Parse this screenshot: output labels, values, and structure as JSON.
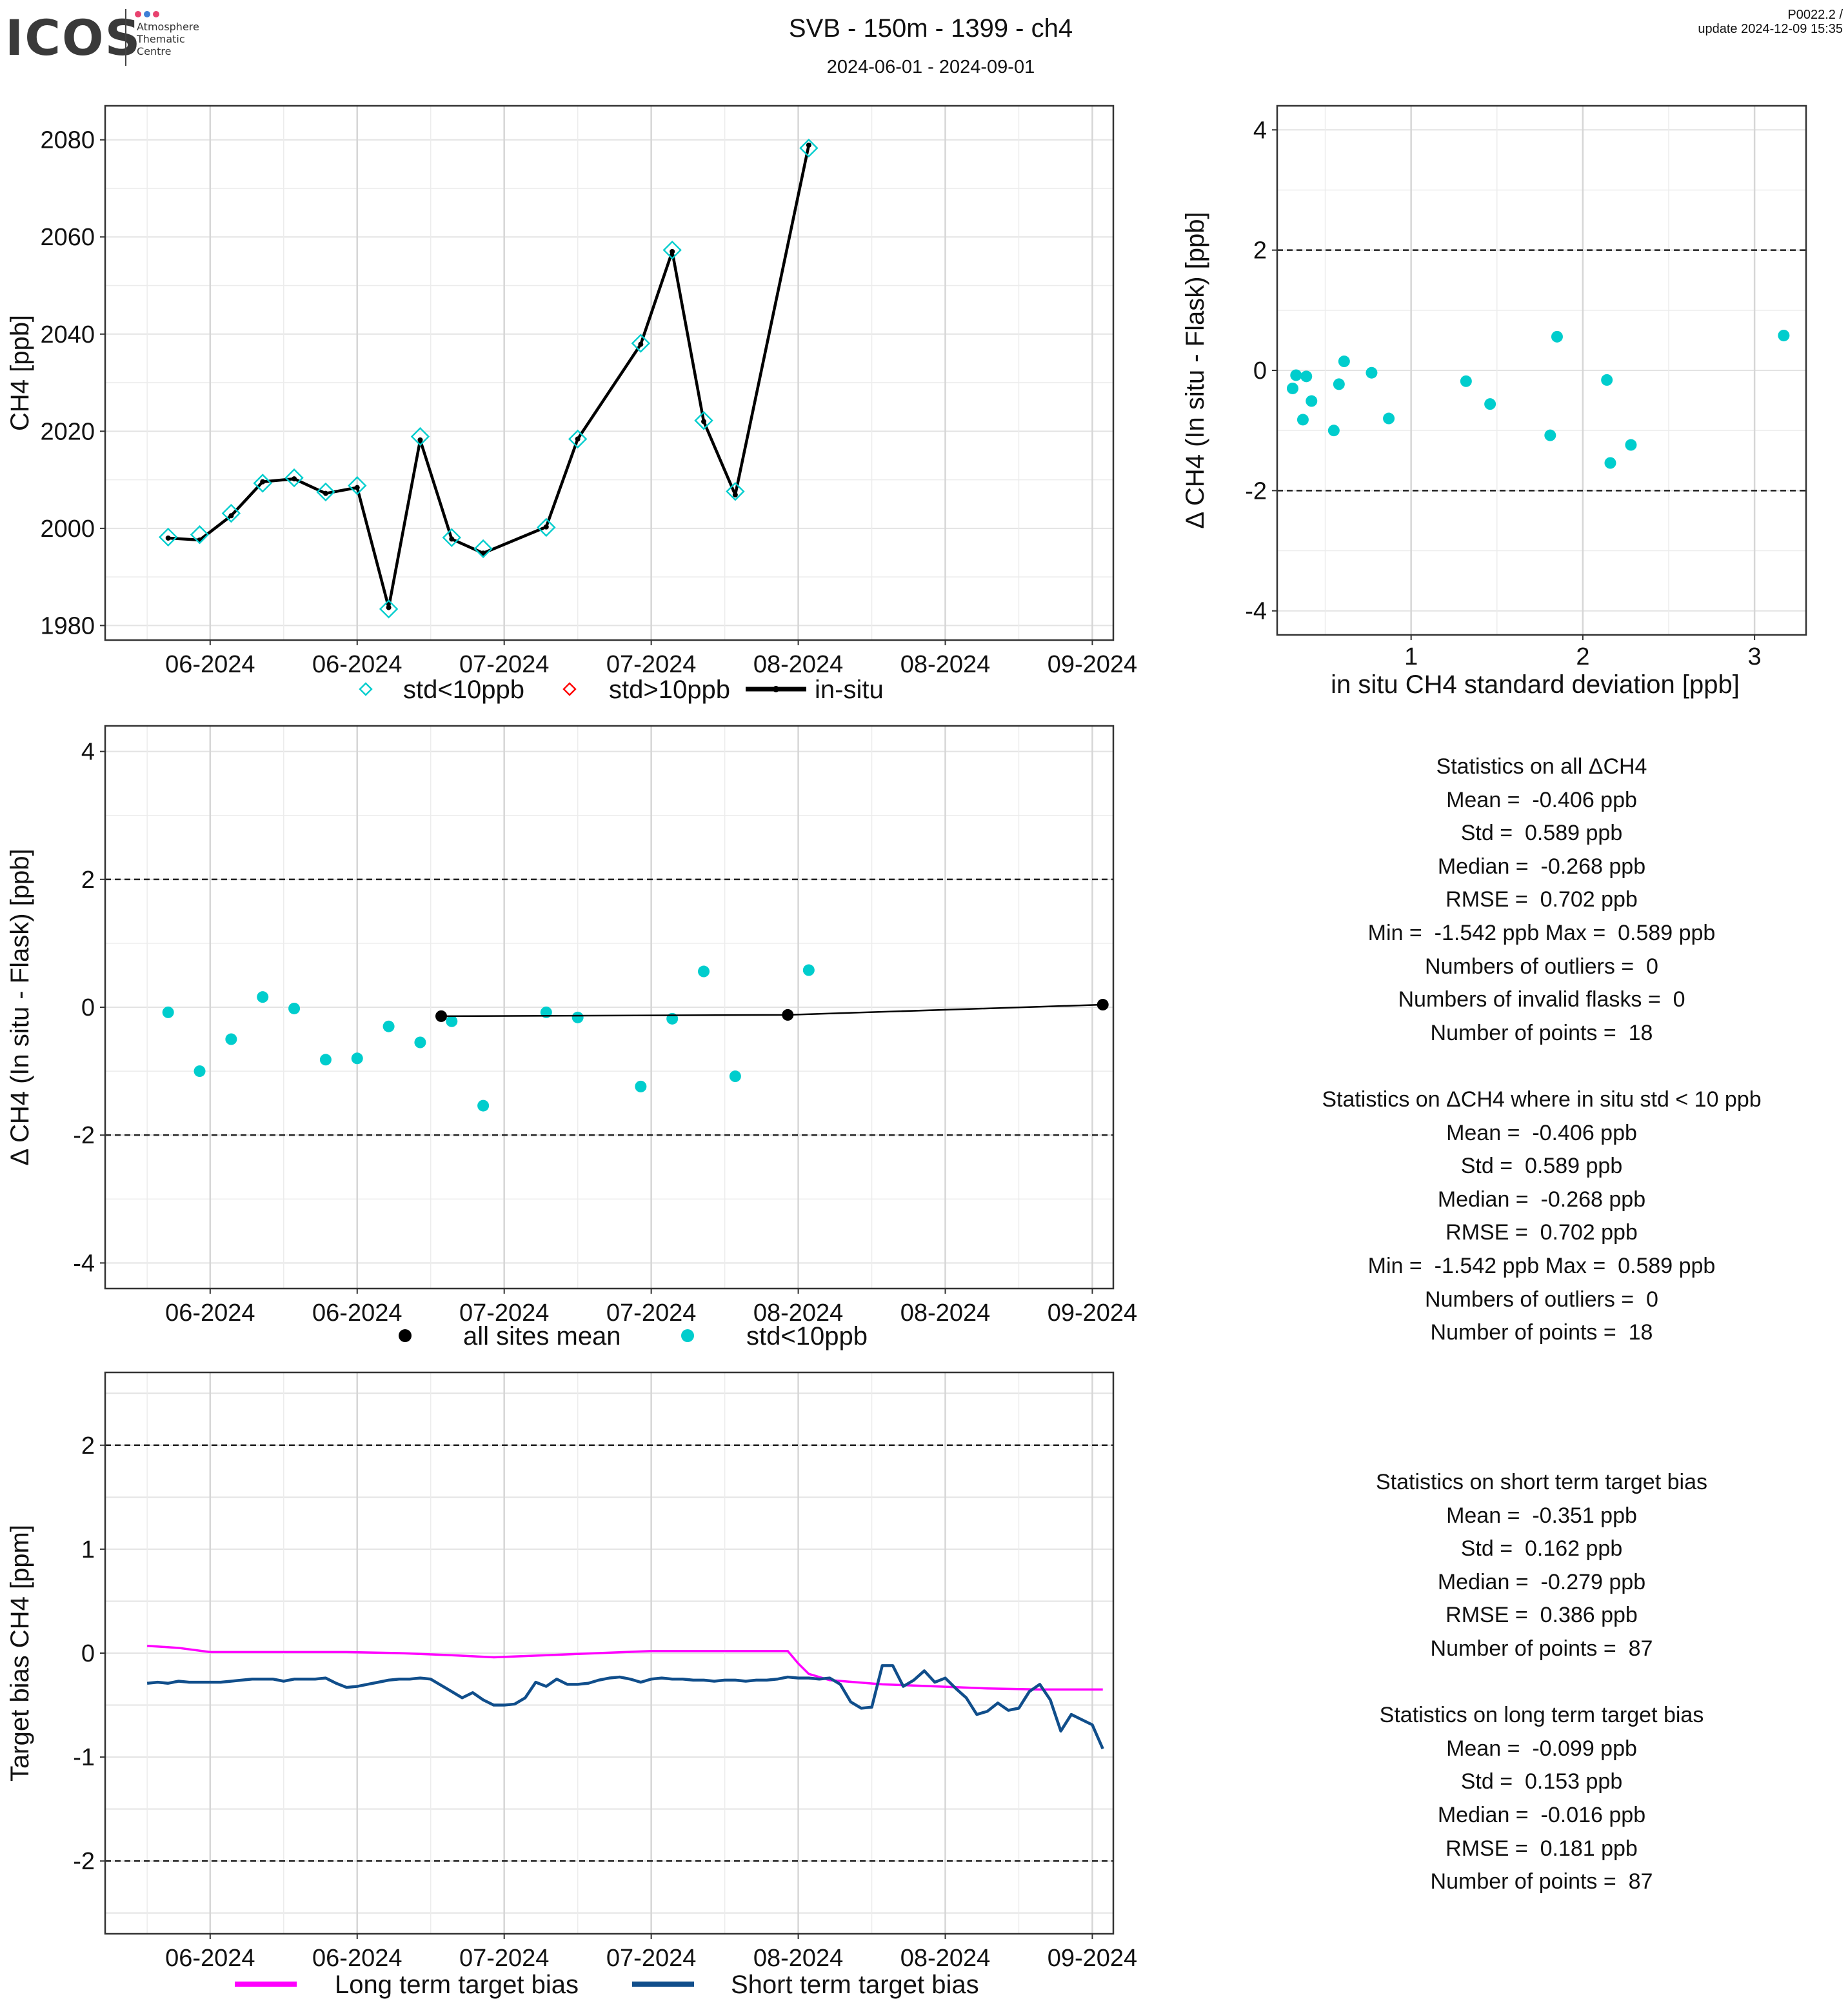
{
  "header": {
    "logo": "ICOS",
    "logo_sub": [
      "Atmosphere",
      "Thematic",
      "Centre"
    ],
    "title": "SVB - 150m - 1399 - ch4",
    "subtitle": "2024-06-01 - 2024-09-01",
    "version": "P0022.2 /",
    "update": "update  2024-12-09 15:35"
  },
  "colors": {
    "std_lt_10": "#00CDCD",
    "std_gt_10": "#FF0000",
    "insitu": "#000000",
    "long_term": "#FF00FF",
    "short_term": "#104E8B",
    "mean": "#000000"
  },
  "chart_data": [
    {
      "type": "line",
      "ylabel": "CH4 [ppb]",
      "xlabel": "",
      "ylim": [
        1977,
        2087
      ],
      "yticks": [
        1980,
        2000,
        2020,
        2040,
        2060,
        2080
      ],
      "xticks": [
        "06-2024",
        "06-2024",
        "07-2024",
        "07-2024",
        "08-2024",
        "08-2024",
        "09-2024"
      ],
      "legend": [
        "std<10ppb",
        "std>10ppb",
        "in-situ"
      ],
      "legend_position": "bottom",
      "series": [
        {
          "name": "std<10ppb",
          "x": [
            "2024-06-03",
            "2024-06-06",
            "2024-06-09",
            "2024-06-12",
            "2024-06-15",
            "2024-06-18",
            "2024-06-21",
            "2024-06-24",
            "2024-06-27",
            "2024-06-30",
            "2024-07-03",
            "2024-07-09",
            "2024-07-12",
            "2024-07-18",
            "2024-07-21",
            "2024-07-24",
            "2024-07-27",
            "2024-08-03"
          ],
          "values": [
            1998.2,
            1998.7,
            2003.1,
            2009.3,
            2010.4,
            2007.5,
            2008.8,
            1983.4,
            2018.9,
            1998.1,
            1995.8,
            2000.2,
            2018.4,
            2038.1,
            2057.3,
            2022.2,
            2007.6,
            2078.3
          ]
        },
        {
          "name": "in-situ",
          "x": [
            "2024-06-03",
            "2024-06-06",
            "2024-06-09",
            "2024-06-12",
            "2024-06-15",
            "2024-06-18",
            "2024-06-21",
            "2024-06-24",
            "2024-06-27",
            "2024-06-30",
            "2024-07-03",
            "2024-07-09",
            "2024-07-12",
            "2024-07-18",
            "2024-07-21",
            "2024-07-24",
            "2024-07-27",
            "2024-08-03"
          ],
          "values": [
            1998.0,
            1997.6,
            2002.6,
            2009.6,
            2010.2,
            2007.2,
            2008.4,
            1983.7,
            2018.2,
            1997.8,
            1994.9,
            2000.3,
            2018.4,
            2037.9,
            2057.0,
            2022.0,
            2006.9,
            2078.9
          ]
        }
      ]
    },
    {
      "type": "scatter",
      "ylabel": "Δ CH4 (In situ - Flask) [ppb]",
      "xlabel": "in situ CH4 standard deviation [ppb]",
      "xlim": [
        0.22,
        3.3
      ],
      "ylim": [
        -4.4,
        4.4
      ],
      "xticks": [
        1,
        2,
        3
      ],
      "yticks": [
        -4,
        -2,
        0,
        2,
        4
      ],
      "hlines": [
        -2,
        2
      ],
      "series": [
        {
          "name": "std<10ppb",
          "x": [
            0.31,
            0.33,
            0.37,
            0.39,
            0.42,
            0.55,
            0.58,
            0.61,
            0.77,
            0.87,
            1.32,
            1.46,
            1.81,
            1.85,
            2.14,
            2.16,
            2.28,
            3.17
          ],
          "values": [
            -0.3,
            -0.08,
            -0.82,
            -0.1,
            -0.51,
            -1.0,
            -0.23,
            0.15,
            -0.04,
            -0.8,
            -0.18,
            -0.56,
            -1.08,
            0.56,
            -0.16,
            -1.54,
            -1.24,
            0.58
          ]
        }
      ]
    },
    {
      "type": "scatter",
      "ylabel": "Δ CH4 (In situ - Flask) [ppb]",
      "xlabel": "",
      "ylim": [
        -4.4,
        4.4
      ],
      "yticks": [
        -4,
        -2,
        0,
        2,
        4
      ],
      "hlines": [
        -2,
        2
      ],
      "xticks": [
        "06-2024",
        "06-2024",
        "07-2024",
        "07-2024",
        "08-2024",
        "08-2024",
        "09-2024"
      ],
      "legend": [
        "all sites mean",
        "std<10ppb"
      ],
      "legend_position": "bottom",
      "series": [
        {
          "name": "std<10ppb",
          "x": [
            "2024-06-03",
            "2024-06-06",
            "2024-06-09",
            "2024-06-12",
            "2024-06-15",
            "2024-06-18",
            "2024-06-21",
            "2024-06-24",
            "2024-06-27",
            "2024-06-30",
            "2024-07-03",
            "2024-07-09",
            "2024-07-12",
            "2024-07-18",
            "2024-07-21",
            "2024-07-24",
            "2024-07-27",
            "2024-08-03"
          ],
          "values": [
            -0.08,
            -1.0,
            -0.5,
            0.16,
            -0.02,
            -0.82,
            -0.8,
            -0.3,
            -0.55,
            -0.22,
            -1.54,
            -0.08,
            -0.16,
            -1.24,
            -0.18,
            0.56,
            -1.08,
            0.58
          ]
        },
        {
          "name": "all sites mean",
          "x": [
            "2024-06-29",
            "2024-08-01",
            "2024-08-31"
          ],
          "values": [
            -0.14,
            -0.12,
            0.04
          ]
        }
      ]
    },
    {
      "type": "line",
      "ylabel": "Target bias CH4 [ppm]",
      "xlabel": "",
      "ylim": [
        -2.7,
        2.7
      ],
      "yticks": [
        -2,
        -1,
        0,
        1,
        2
      ],
      "hlines": [
        -2,
        2
      ],
      "xticks": [
        "06-2024",
        "06-2024",
        "07-2024",
        "07-2024",
        "08-2024",
        "08-2024",
        "09-2024"
      ],
      "legend": [
        "Long term target bias",
        "Short term target bias"
      ],
      "legend_position": "bottom",
      "series": [
        {
          "name": "Long term target bias",
          "x": [
            "2024-06-01",
            "2024-06-04",
            "2024-06-07",
            "2024-06-15",
            "2024-06-20",
            "2024-06-25",
            "2024-06-30",
            "2024-07-04",
            "2024-07-09",
            "2024-07-14",
            "2024-07-19",
            "2024-07-24",
            "2024-07-29",
            "2024-08-01",
            "2024-08-02",
            "2024-08-03",
            "2024-08-05",
            "2024-08-10",
            "2024-08-15",
            "2024-08-20",
            "2024-08-25",
            "2024-08-31"
          ],
          "values": [
            0.07,
            0.05,
            0.01,
            0.01,
            0.01,
            0.0,
            -0.02,
            -0.04,
            -0.02,
            0.0,
            0.02,
            0.02,
            0.02,
            0.02,
            -0.1,
            -0.2,
            -0.26,
            -0.3,
            -0.32,
            -0.34,
            -0.35,
            -0.35
          ]
        },
        {
          "name": "Short term target bias",
          "x": [
            "2024-06-01",
            "2024-06-02",
            "2024-06-03",
            "2024-06-04",
            "2024-06-05",
            "2024-06-06",
            "2024-06-07",
            "2024-06-08",
            "2024-06-09",
            "2024-06-10",
            "2024-06-11",
            "2024-06-12",
            "2024-06-13",
            "2024-06-14",
            "2024-06-15",
            "2024-06-16",
            "2024-06-17",
            "2024-06-18",
            "2024-06-19",
            "2024-06-20",
            "2024-06-21",
            "2024-06-22",
            "2024-06-23",
            "2024-06-24",
            "2024-06-25",
            "2024-06-26",
            "2024-06-27",
            "2024-06-28",
            "2024-06-29",
            "2024-06-30",
            "2024-07-01",
            "2024-07-02",
            "2024-07-03",
            "2024-07-04",
            "2024-07-05",
            "2024-07-06",
            "2024-07-07",
            "2024-07-08",
            "2024-07-09",
            "2024-07-10",
            "2024-07-11",
            "2024-07-12",
            "2024-07-13",
            "2024-07-14",
            "2024-07-15",
            "2024-07-16",
            "2024-07-17",
            "2024-07-18",
            "2024-07-19",
            "2024-07-20",
            "2024-07-21",
            "2024-07-22",
            "2024-07-23",
            "2024-07-24",
            "2024-07-25",
            "2024-07-26",
            "2024-07-27",
            "2024-07-28",
            "2024-07-29",
            "2024-07-30",
            "2024-07-31",
            "2024-08-01",
            "2024-08-02",
            "2024-08-03",
            "2024-08-04",
            "2024-08-05",
            "2024-08-06",
            "2024-08-07",
            "2024-08-08",
            "2024-08-09",
            "2024-08-10",
            "2024-08-11",
            "2024-08-12",
            "2024-08-13",
            "2024-08-14",
            "2024-08-15",
            "2024-08-16",
            "2024-08-17",
            "2024-08-18",
            "2024-08-19",
            "2024-08-20",
            "2024-08-21",
            "2024-08-22",
            "2024-08-23",
            "2024-08-24",
            "2024-08-25",
            "2024-08-26",
            "2024-08-27",
            "2024-08-28",
            "2024-08-29",
            "2024-08-30",
            "2024-08-31"
          ],
          "values": [
            -0.29,
            -0.28,
            -0.29,
            -0.27,
            -0.28,
            -0.28,
            -0.28,
            -0.28,
            -0.27,
            -0.26,
            -0.25,
            -0.25,
            -0.25,
            -0.27,
            -0.25,
            -0.25,
            -0.25,
            -0.24,
            -0.29,
            -0.33,
            -0.32,
            -0.3,
            -0.28,
            -0.26,
            -0.25,
            -0.25,
            -0.24,
            -0.25,
            -0.31,
            -0.37,
            -0.43,
            -0.38,
            -0.45,
            -0.5,
            -0.5,
            -0.49,
            -0.43,
            -0.28,
            -0.32,
            -0.25,
            -0.3,
            -0.3,
            -0.29,
            -0.26,
            -0.24,
            -0.23,
            -0.25,
            -0.28,
            -0.25,
            -0.24,
            -0.25,
            -0.25,
            -0.26,
            -0.26,
            -0.27,
            -0.26,
            -0.26,
            -0.27,
            -0.26,
            -0.26,
            -0.25,
            -0.23,
            -0.24,
            -0.24,
            -0.25,
            -0.24,
            -0.3,
            -0.47,
            -0.53,
            -0.52,
            -0.12,
            -0.12,
            -0.32,
            -0.26,
            -0.17,
            -0.28,
            -0.24,
            -0.34,
            -0.43,
            -0.59,
            -0.56,
            -0.48,
            -0.55,
            -0.53,
            -0.37,
            -0.3,
            -0.45,
            -0.75,
            -0.59,
            -0.64,
            -0.69,
            -0.92
          ]
        }
      ]
    }
  ],
  "stats_panel_1": [
    "Statistics on all ΔCH4",
    "Mean =  -0.406 ppb",
    "Std =  0.589 ppb",
    "Median =  -0.268 ppb",
    "RMSE =  0.702 ppb",
    "Min =  -1.542 ppb Max =  0.589 ppb",
    "Numbers of outliers =  0",
    "Numbers of invalid flasks =  0",
    "Number of points =  18",
    "",
    "Statistics on ΔCH4 where in situ std < 10 ppb",
    "Mean =  -0.406 ppb",
    "Std =  0.589 ppb",
    "Median =  -0.268 ppb",
    "RMSE =  0.702 ppb",
    "Min =  -1.542 ppb Max =  0.589 ppb",
    "Numbers of outliers =  0",
    "Number of points =  18"
  ],
  "stats_panel_2": [
    "Statistics on short term target bias",
    "Mean =  -0.351 ppb",
    "Std =  0.162 ppb",
    "Median =  -0.279 ppb",
    "RMSE =  0.386 ppb",
    "Number of points =  87",
    "",
    "Statistics on long term target bias",
    "Mean =  -0.099 ppb",
    "Std =  0.153 ppb",
    "Median =  -0.016 ppb",
    "RMSE =  0.181 ppb",
    "Number of points =  87"
  ]
}
